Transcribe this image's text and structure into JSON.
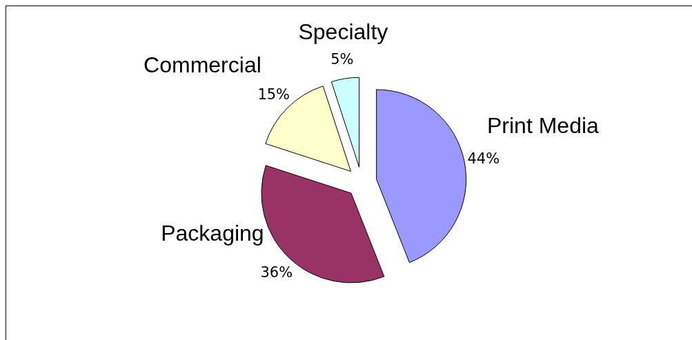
{
  "chart_data": {
    "type": "pie",
    "categories": [
      "Print Media",
      "Packaging",
      "Commercial",
      "Specialty"
    ],
    "values": [
      44,
      36,
      15,
      5
    ],
    "colors": [
      "#9999ff",
      "#993366",
      "#ffffcc",
      "#ccffff"
    ],
    "value_labels": [
      "44%",
      "36%",
      "15%",
      "5%"
    ],
    "legend": false
  }
}
